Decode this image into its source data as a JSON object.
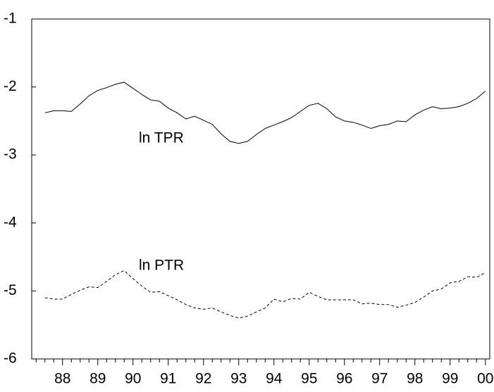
{
  "chart_data": {
    "type": "line",
    "categories": [
      null,
      null,
      null,
      "88",
      null,
      null,
      null,
      "89",
      null,
      null,
      null,
      "90",
      null,
      null,
      null,
      "91",
      null,
      null,
      null,
      "92",
      null,
      null,
      null,
      "93",
      null,
      null,
      null,
      "94",
      null,
      null,
      null,
      "95",
      null,
      null,
      null,
      "96",
      null,
      null,
      null,
      "97",
      null,
      null,
      null,
      "98",
      null,
      null,
      null,
      "99",
      null,
      null,
      null,
      "00"
    ],
    "series": [
      {
        "color": "#000000",
        "dash": false,
        "values": [
          null,
          -2.38,
          -2.35,
          -2.35,
          -2.36,
          -2.25,
          -2.13,
          -2.05,
          -2.01,
          -1.96,
          -1.93,
          -2.02,
          -2.11,
          -2.19,
          -2.21,
          -2.31,
          -2.38,
          -2.47,
          -2.43,
          -2.49,
          -2.55,
          -2.69,
          -2.8,
          -2.83,
          -2.8,
          -2.7,
          -2.61,
          -2.56,
          -2.51,
          -2.45,
          -2.36,
          -2.27,
          -2.24,
          -2.32,
          -2.44,
          -2.5,
          -2.52,
          -2.56,
          -2.61,
          -2.57,
          -2.55,
          -2.5,
          -2.51,
          -2.41,
          -2.34,
          -2.29,
          -2.32,
          -2.31,
          -2.29,
          -2.24,
          -2.17,
          -2.06
        ]
      },
      {
        "color": "#000000",
        "dash": true,
        "values": [
          null,
          -5.1,
          -5.12,
          -5.12,
          -5.05,
          -4.99,
          -4.94,
          -4.95,
          -4.86,
          -4.76,
          -4.7,
          -4.82,
          -4.93,
          -5.02,
          -5.01,
          -5.07,
          -5.13,
          -5.2,
          -5.25,
          -5.27,
          -5.25,
          -5.31,
          -5.36,
          -5.4,
          -5.37,
          -5.31,
          -5.25,
          -5.12,
          -5.16,
          -5.11,
          -5.12,
          -5.02,
          -5.08,
          -5.13,
          -5.13,
          -5.13,
          -5.13,
          -5.19,
          -5.18,
          -5.2,
          -5.2,
          -5.24,
          -5.21,
          -5.17,
          -5.09,
          -5.0,
          -4.97,
          -4.88,
          -4.86,
          -4.79,
          -4.8,
          -4.73
        ]
      }
    ],
    "annotations": [
      "ln TPR",
      "ln PTR"
    ],
    "ylim": [
      -6,
      -1
    ],
    "yticks": [
      -6,
      -5,
      -4,
      -3,
      -2,
      -1
    ],
    "grid": false
  }
}
